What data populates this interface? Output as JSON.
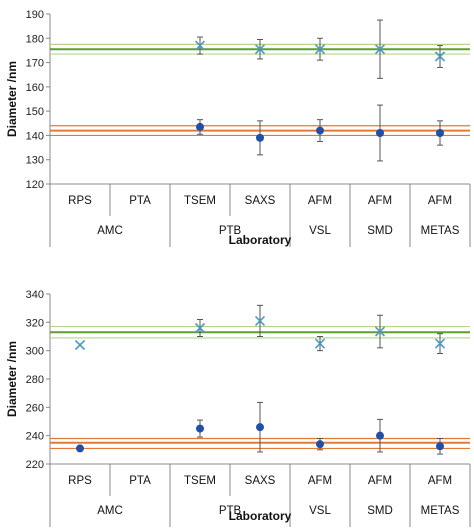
{
  "chart_data": [
    {
      "type": "scatter",
      "xlabel": "Laboratory",
      "ylabel": "Diameter /nm",
      "ylim": [
        120,
        190
      ],
      "yticks": [
        120,
        130,
        140,
        150,
        160,
        170,
        180,
        190
      ],
      "grid": false,
      "categories": [
        "RPS",
        "PTA",
        "TSEM",
        "SAXS",
        "AFM",
        "AFM",
        "AFM"
      ],
      "groups": [
        {
          "label": "AMC",
          "span": [
            0,
            1
          ]
        },
        {
          "label": "PTB",
          "span": [
            2,
            3
          ]
        },
        {
          "label": "VSL",
          "span": [
            4,
            4
          ]
        },
        {
          "label": "SMD",
          "span": [
            5,
            5
          ]
        },
        {
          "label": "METAS",
          "span": [
            6,
            6
          ]
        }
      ],
      "series": [
        {
          "marker": "x",
          "color": "#4a9bc0",
          "values": [
            null,
            null,
            177,
            175.5,
            175.5,
            175.5,
            172.5
          ],
          "errors": [
            null,
            null,
            3.5,
            4,
            4.5,
            12,
            4.5
          ]
        },
        {
          "marker": "circle",
          "color": "#1f4fa6",
          "values": [
            null,
            null,
            143.5,
            139,
            142,
            141,
            141
          ],
          "errors": [
            null,
            null,
            3,
            7,
            4.5,
            11.5,
            5
          ]
        }
      ],
      "reference_lines": [
        {
          "y": 175.5,
          "color": "#5e9e2f",
          "width": 2
        },
        {
          "y": 177.5,
          "color": "#b3d48a",
          "width": 1.2
        },
        {
          "y": 173.5,
          "color": "#b3d48a",
          "width": 1.2
        },
        {
          "y": 142,
          "color": "#e07a3a",
          "width": 2
        },
        {
          "y": 144,
          "color": "#e07a3a",
          "width": 1.2
        },
        {
          "y": 140,
          "color": "#e07a3a",
          "width": 1.2
        }
      ]
    },
    {
      "type": "scatter",
      "xlabel": "Laboratory",
      "ylabel": "Diameter /nm",
      "ylim": [
        220,
        340
      ],
      "yticks": [
        220,
        240,
        260,
        280,
        300,
        320,
        340
      ],
      "grid": false,
      "categories": [
        "RPS",
        "PTA",
        "TSEM",
        "SAXS",
        "AFM",
        "AFM",
        "AFM"
      ],
      "groups": [
        {
          "label": "AMC",
          "span": [
            0,
            1
          ]
        },
        {
          "label": "PTB",
          "span": [
            2,
            3
          ]
        },
        {
          "label": "VSL",
          "span": [
            4,
            4
          ]
        },
        {
          "label": "SMD",
          "span": [
            5,
            5
          ]
        },
        {
          "label": "METAS",
          "span": [
            6,
            6
          ]
        }
      ],
      "series": [
        {
          "marker": "x",
          "color": "#4a9bc0",
          "values": [
            304,
            null,
            316,
            321,
            305,
            313.5,
            305
          ],
          "errors": [
            null,
            null,
            6,
            11,
            5,
            11.5,
            7
          ]
        },
        {
          "marker": "circle",
          "color": "#1f4fa6",
          "values": [
            231,
            null,
            245,
            246,
            234,
            240,
            232.5
          ],
          "errors": [
            null,
            null,
            6,
            17.5,
            4,
            11.5,
            5.5
          ]
        }
      ],
      "reference_lines": [
        {
          "y": 313,
          "color": "#5e9e2f",
          "width": 2
        },
        {
          "y": 317,
          "color": "#b3d48a",
          "width": 1.2
        },
        {
          "y": 309,
          "color": "#b3d48a",
          "width": 1.2
        },
        {
          "y": 235,
          "color": "#e07a3a",
          "width": 2
        },
        {
          "y": 238,
          "color": "#e07a3a",
          "width": 1.2
        },
        {
          "y": 231,
          "color": "#e07a3a",
          "width": 1.2
        }
      ]
    }
  ]
}
